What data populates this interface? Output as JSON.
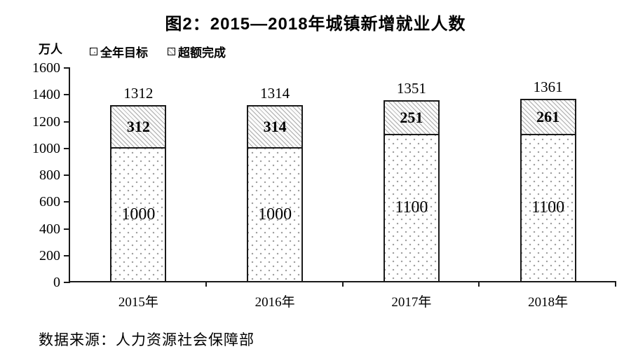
{
  "title": "图2：2015—2018年城镇新增就业人数",
  "unit_label": "万人",
  "legend": [
    {
      "label": "全年目标",
      "pattern": "dots"
    },
    {
      "label": "超额完成",
      "pattern": "hatch"
    }
  ],
  "source_note": "数据来源：人力资源社会保障部",
  "colors": {
    "text": "#000000",
    "axis": "#1a1a1a",
    "pattern_gray": "#9c9c9c",
    "background": "#ffffff"
  },
  "chart_data": {
    "type": "bar",
    "stacked": true,
    "title": "图2：2015—2018年城镇新增就业人数",
    "ylabel": "万人",
    "categories": [
      "2015年",
      "2016年",
      "2017年",
      "2018年"
    ],
    "series": [
      {
        "name": "全年目标",
        "pattern": "dots",
        "values": [
          1000,
          1000,
          1100,
          1100
        ]
      },
      {
        "name": "超额完成",
        "pattern": "hatch",
        "values": [
          312,
          314,
          251,
          261
        ]
      }
    ],
    "totals": [
      1312,
      1314,
      1351,
      1361
    ],
    "ylim": [
      0,
      1600
    ],
    "yticks": [
      0,
      200,
      400,
      600,
      800,
      1000,
      1200,
      1400,
      1600
    ],
    "grid": false,
    "legend_position": "top-left"
  }
}
